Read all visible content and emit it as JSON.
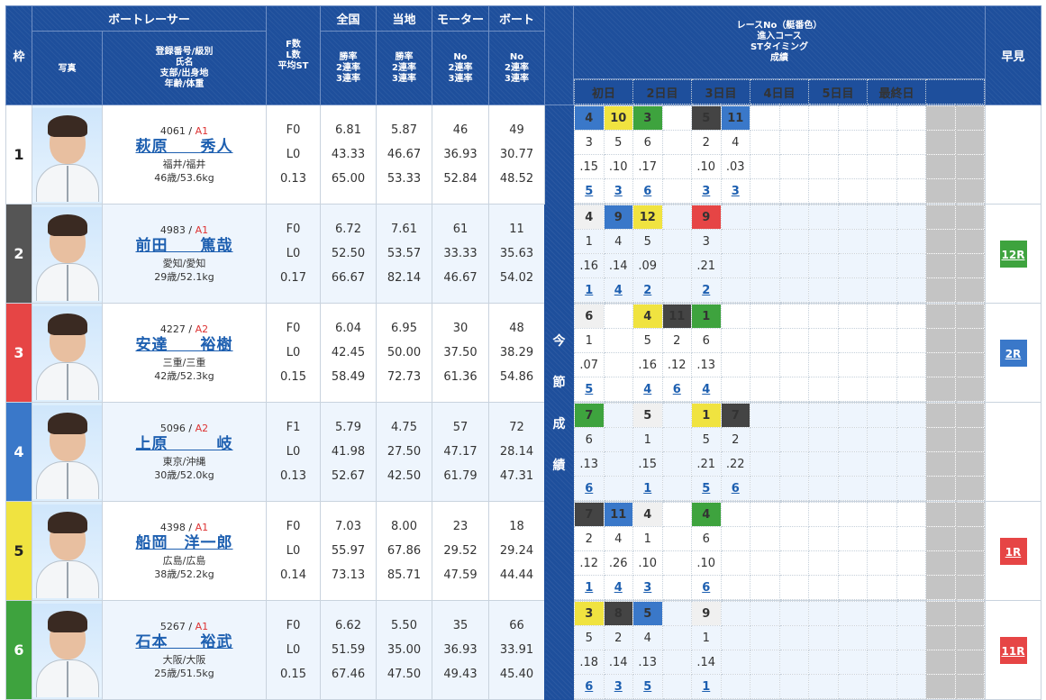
{
  "header": {
    "waku": "枠",
    "boatracer": "ボートレーサー",
    "photo": "写真",
    "racer_info": [
      "登録番号/級別",
      "氏名",
      "支部/出身地",
      "年齢/体重"
    ],
    "fl": [
      "F数",
      "L数",
      "平均ST"
    ],
    "zenkoku": "全国",
    "touchi": "当地",
    "motor": "モーター",
    "boat": "ボート",
    "rate_lines": [
      "勝率",
      "2連率",
      "3連率"
    ],
    "no_lines": [
      "No",
      "2連率",
      "3連率"
    ],
    "results_title": [
      "レースNo（艇番色）",
      "進入コース",
      "STタイミング",
      "成績"
    ],
    "days": [
      "初日",
      "2日目",
      "3日目",
      "4日目",
      "5日目",
      "最終日"
    ],
    "early": "早見",
    "mid": [
      "今",
      "節",
      "成",
      "績"
    ]
  },
  "racers": [
    {
      "waku": "1",
      "reg": "4061",
      "cls": "A1",
      "name": "萩原　　秀人",
      "branch": "福井/福井",
      "age_weight": "46歳/53.6kg",
      "f": "F0",
      "l": "L0",
      "st": "0.13",
      "zen": [
        "6.81",
        "43.33",
        "65.00"
      ],
      "tou": [
        "5.87",
        "46.67",
        "53.33"
      ],
      "motor": [
        "46",
        "36.93",
        "52.84"
      ],
      "boat": [
        "49",
        "30.77",
        "48.52"
      ],
      "races": [
        {
          "r": "4",
          "c": "c4",
          "course": "3",
          "st": ".15",
          "res": "5"
        },
        {
          "r": "10",
          "c": "c5",
          "course": "5",
          "st": ".10",
          "res": "3"
        },
        {
          "r": "3",
          "c": "c6",
          "course": "6",
          "st": ".17",
          "res": "6"
        },
        {
          "r": "",
          "c": "",
          "course": "",
          "st": "",
          "res": ""
        },
        {
          "r": "5",
          "c": "c2",
          "course": "2",
          "st": ".10",
          "res": "3"
        },
        {
          "r": "11",
          "c": "c4",
          "course": "4",
          "st": ".03",
          "res": "3"
        }
      ],
      "early": ""
    },
    {
      "waku": "2",
      "reg": "4983",
      "cls": "A1",
      "name": "前田　　篤哉",
      "branch": "愛知/愛知",
      "age_weight": "29歳/52.1kg",
      "f": "F0",
      "l": "L0",
      "st": "0.17",
      "zen": [
        "6.72",
        "52.50",
        "66.67"
      ],
      "tou": [
        "7.61",
        "53.57",
        "82.14"
      ],
      "motor": [
        "61",
        "33.33",
        "46.67"
      ],
      "boat": [
        "11",
        "35.63",
        "54.02"
      ],
      "races": [
        {
          "r": "4",
          "c": "cw",
          "course": "1",
          "st": ".16",
          "res": "1"
        },
        {
          "r": "9",
          "c": "c4",
          "course": "4",
          "st": ".14",
          "res": "4"
        },
        {
          "r": "12",
          "c": "c5",
          "course": "5",
          "st": ".09",
          "res": "2"
        },
        {
          "r": "",
          "c": "",
          "course": "",
          "st": "",
          "res": ""
        },
        {
          "r": "9",
          "c": "c3",
          "course": "3",
          "st": ".21",
          "res": "2"
        },
        {
          "r": "",
          "c": "",
          "course": "",
          "st": "",
          "res": ""
        }
      ],
      "early": "12R",
      "early_color": "#3ea33e"
    },
    {
      "waku": "3",
      "reg": "4227",
      "cls": "A2",
      "name": "安達　　裕樹",
      "branch": "三重/三重",
      "age_weight": "42歳/52.3kg",
      "f": "F0",
      "l": "L0",
      "st": "0.15",
      "zen": [
        "6.04",
        "42.45",
        "58.49"
      ],
      "tou": [
        "6.95",
        "50.00",
        "72.73"
      ],
      "motor": [
        "30",
        "37.50",
        "61.36"
      ],
      "boat": [
        "48",
        "38.29",
        "54.86"
      ],
      "races": [
        {
          "r": "6",
          "c": "cw",
          "course": "1",
          "st": ".07",
          "res": "5"
        },
        {
          "r": "",
          "c": "",
          "course": "",
          "st": "",
          "res": ""
        },
        {
          "r": "4",
          "c": "c5",
          "course": "5",
          "st": ".16",
          "res": "4"
        },
        {
          "r": "11",
          "c": "c2",
          "course": "2",
          "st": ".12",
          "res": "6"
        },
        {
          "r": "1",
          "c": "c6",
          "course": "6",
          "st": ".13",
          "res": "4"
        },
        {
          "r": "",
          "c": "",
          "course": "",
          "st": "",
          "res": ""
        }
      ],
      "early": "2R",
      "early_color": "#3a78c9"
    },
    {
      "waku": "4",
      "reg": "5096",
      "cls": "A2",
      "name": "上原　　　岐",
      "branch": "東京/沖縄",
      "age_weight": "30歳/52.0kg",
      "f": "F1",
      "l": "L0",
      "st": "0.13",
      "zen": [
        "5.79",
        "41.98",
        "52.67"
      ],
      "tou": [
        "4.75",
        "27.50",
        "42.50"
      ],
      "motor": [
        "57",
        "47.17",
        "61.79"
      ],
      "boat": [
        "72",
        "28.14",
        "47.31"
      ],
      "races": [
        {
          "r": "7",
          "c": "c6",
          "course": "6",
          "st": ".13",
          "res": "6"
        },
        {
          "r": "",
          "c": "",
          "course": "",
          "st": "",
          "res": ""
        },
        {
          "r": "5",
          "c": "cw",
          "course": "1",
          "st": ".15",
          "res": "1"
        },
        {
          "r": "",
          "c": "",
          "course": "",
          "st": "",
          "res": ""
        },
        {
          "r": "1",
          "c": "c5",
          "course": "5",
          "st": ".21",
          "res": "5"
        },
        {
          "r": "7",
          "c": "c2",
          "course": "2",
          "st": ".22",
          "res": "6"
        }
      ],
      "early": ""
    },
    {
      "waku": "5",
      "reg": "4398",
      "cls": "A1",
      "name": "船岡　洋一郎",
      "branch": "広島/広島",
      "age_weight": "38歳/52.2kg",
      "f": "F0",
      "l": "L0",
      "st": "0.14",
      "zen": [
        "7.03",
        "55.97",
        "73.13"
      ],
      "tou": [
        "8.00",
        "67.86",
        "85.71"
      ],
      "motor": [
        "23",
        "29.52",
        "47.59"
      ],
      "boat": [
        "18",
        "29.24",
        "44.44"
      ],
      "races": [
        {
          "r": "7",
          "c": "c2",
          "course": "2",
          "st": ".12",
          "res": "1"
        },
        {
          "r": "11",
          "c": "c4",
          "course": "4",
          "st": ".26",
          "res": "4"
        },
        {
          "r": "4",
          "c": "cw",
          "course": "1",
          "st": ".10",
          "res": "3"
        },
        {
          "r": "",
          "c": "",
          "course": "",
          "st": "",
          "res": ""
        },
        {
          "r": "4",
          "c": "c6",
          "course": "6",
          "st": ".10",
          "res": "6"
        },
        {
          "r": "",
          "c": "",
          "course": "",
          "st": "",
          "res": ""
        }
      ],
      "early": "1R",
      "early_color": "#e64545"
    },
    {
      "waku": "6",
      "reg": "5267",
      "cls": "A1",
      "name": "石本　　裕武",
      "branch": "大阪/大阪",
      "age_weight": "25歳/51.5kg",
      "f": "F0",
      "l": "L0",
      "st": "0.15",
      "zen": [
        "6.62",
        "51.59",
        "67.46"
      ],
      "tou": [
        "5.50",
        "35.00",
        "47.50"
      ],
      "motor": [
        "35",
        "36.93",
        "49.43"
      ],
      "boat": [
        "66",
        "33.91",
        "45.40"
      ],
      "races": [
        {
          "r": "3",
          "c": "c5",
          "course": "5",
          "st": ".18",
          "res": "6"
        },
        {
          "r": "8",
          "c": "c2",
          "course": "2",
          "st": ".14",
          "res": "3"
        },
        {
          "r": "5",
          "c": "c4",
          "course": "4",
          "st": ".13",
          "res": "5"
        },
        {
          "r": "",
          "c": "",
          "course": "",
          "st": "",
          "res": ""
        },
        {
          "r": "9",
          "c": "cw",
          "course": "1",
          "st": ".14",
          "res": "1"
        },
        {
          "r": "",
          "c": "",
          "course": "",
          "st": "",
          "res": ""
        }
      ],
      "early": "11R",
      "early_color": "#e64545"
    }
  ]
}
